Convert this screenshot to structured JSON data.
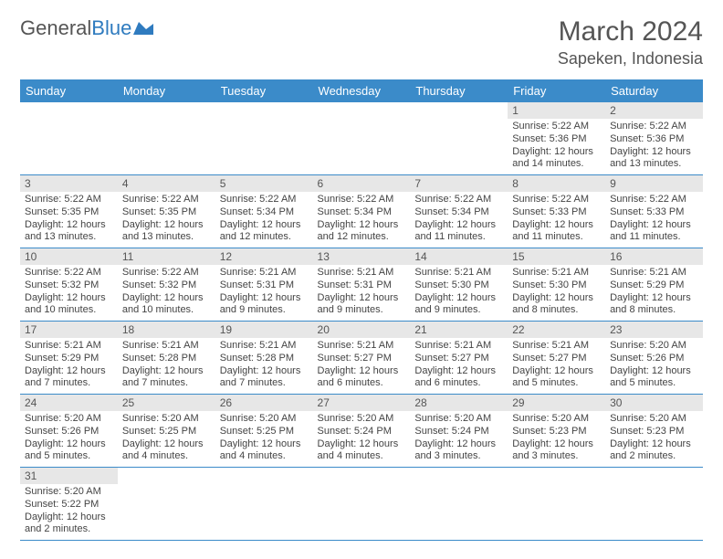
{
  "logo": {
    "text1": "General",
    "text2": "Blue"
  },
  "title": "March 2024",
  "location": "Sapeken, Indonesia",
  "colors": {
    "header_bg": "#3b8bc9",
    "header_text": "#ffffff",
    "daynum_bg": "#e7e7e7",
    "border": "#3b8bc9",
    "logo_blue": "#2f7bbf"
  },
  "weekdays": [
    "Sunday",
    "Monday",
    "Tuesday",
    "Wednesday",
    "Thursday",
    "Friday",
    "Saturday"
  ],
  "weeks": [
    [
      null,
      null,
      null,
      null,
      null,
      {
        "n": "1",
        "sr": "5:22 AM",
        "ss": "5:36 PM",
        "dl": "12 hours and 14 minutes."
      },
      {
        "n": "2",
        "sr": "5:22 AM",
        "ss": "5:36 PM",
        "dl": "12 hours and 13 minutes."
      }
    ],
    [
      {
        "n": "3",
        "sr": "5:22 AM",
        "ss": "5:35 PM",
        "dl": "12 hours and 13 minutes."
      },
      {
        "n": "4",
        "sr": "5:22 AM",
        "ss": "5:35 PM",
        "dl": "12 hours and 13 minutes."
      },
      {
        "n": "5",
        "sr": "5:22 AM",
        "ss": "5:34 PM",
        "dl": "12 hours and 12 minutes."
      },
      {
        "n": "6",
        "sr": "5:22 AM",
        "ss": "5:34 PM",
        "dl": "12 hours and 12 minutes."
      },
      {
        "n": "7",
        "sr": "5:22 AM",
        "ss": "5:34 PM",
        "dl": "12 hours and 11 minutes."
      },
      {
        "n": "8",
        "sr": "5:22 AM",
        "ss": "5:33 PM",
        "dl": "12 hours and 11 minutes."
      },
      {
        "n": "9",
        "sr": "5:22 AM",
        "ss": "5:33 PM",
        "dl": "12 hours and 11 minutes."
      }
    ],
    [
      {
        "n": "10",
        "sr": "5:22 AM",
        "ss": "5:32 PM",
        "dl": "12 hours and 10 minutes."
      },
      {
        "n": "11",
        "sr": "5:22 AM",
        "ss": "5:32 PM",
        "dl": "12 hours and 10 minutes."
      },
      {
        "n": "12",
        "sr": "5:21 AM",
        "ss": "5:31 PM",
        "dl": "12 hours and 9 minutes."
      },
      {
        "n": "13",
        "sr": "5:21 AM",
        "ss": "5:31 PM",
        "dl": "12 hours and 9 minutes."
      },
      {
        "n": "14",
        "sr": "5:21 AM",
        "ss": "5:30 PM",
        "dl": "12 hours and 9 minutes."
      },
      {
        "n": "15",
        "sr": "5:21 AM",
        "ss": "5:30 PM",
        "dl": "12 hours and 8 minutes."
      },
      {
        "n": "16",
        "sr": "5:21 AM",
        "ss": "5:29 PM",
        "dl": "12 hours and 8 minutes."
      }
    ],
    [
      {
        "n": "17",
        "sr": "5:21 AM",
        "ss": "5:29 PM",
        "dl": "12 hours and 7 minutes."
      },
      {
        "n": "18",
        "sr": "5:21 AM",
        "ss": "5:28 PM",
        "dl": "12 hours and 7 minutes."
      },
      {
        "n": "19",
        "sr": "5:21 AM",
        "ss": "5:28 PM",
        "dl": "12 hours and 7 minutes."
      },
      {
        "n": "20",
        "sr": "5:21 AM",
        "ss": "5:27 PM",
        "dl": "12 hours and 6 minutes."
      },
      {
        "n": "21",
        "sr": "5:21 AM",
        "ss": "5:27 PM",
        "dl": "12 hours and 6 minutes."
      },
      {
        "n": "22",
        "sr": "5:21 AM",
        "ss": "5:27 PM",
        "dl": "12 hours and 5 minutes."
      },
      {
        "n": "23",
        "sr": "5:20 AM",
        "ss": "5:26 PM",
        "dl": "12 hours and 5 minutes."
      }
    ],
    [
      {
        "n": "24",
        "sr": "5:20 AM",
        "ss": "5:26 PM",
        "dl": "12 hours and 5 minutes."
      },
      {
        "n": "25",
        "sr": "5:20 AM",
        "ss": "5:25 PM",
        "dl": "12 hours and 4 minutes."
      },
      {
        "n": "26",
        "sr": "5:20 AM",
        "ss": "5:25 PM",
        "dl": "12 hours and 4 minutes."
      },
      {
        "n": "27",
        "sr": "5:20 AM",
        "ss": "5:24 PM",
        "dl": "12 hours and 4 minutes."
      },
      {
        "n": "28",
        "sr": "5:20 AM",
        "ss": "5:24 PM",
        "dl": "12 hours and 3 minutes."
      },
      {
        "n": "29",
        "sr": "5:20 AM",
        "ss": "5:23 PM",
        "dl": "12 hours and 3 minutes."
      },
      {
        "n": "30",
        "sr": "5:20 AM",
        "ss": "5:23 PM",
        "dl": "12 hours and 2 minutes."
      }
    ],
    [
      {
        "n": "31",
        "sr": "5:20 AM",
        "ss": "5:22 PM",
        "dl": "12 hours and 2 minutes."
      },
      null,
      null,
      null,
      null,
      null,
      null
    ]
  ],
  "labels": {
    "sunrise": "Sunrise:",
    "sunset": "Sunset:",
    "daylight": "Daylight:"
  }
}
